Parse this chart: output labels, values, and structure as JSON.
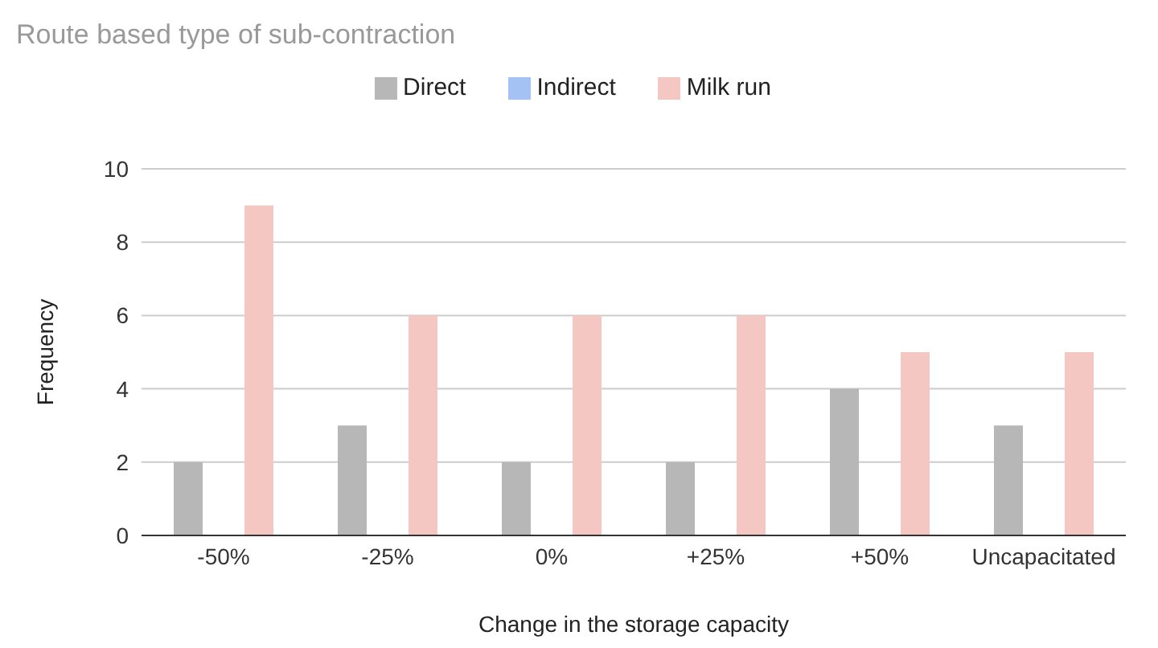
{
  "chart_data": {
    "type": "bar",
    "title": "Route based type of sub-contraction",
    "xlabel": "Change in the storage capacity",
    "ylabel": "Frequency",
    "categories": [
      "-50%",
      "-25%",
      "0%",
      "+25%",
      "+50%",
      "Uncapacitated"
    ],
    "series": [
      {
        "name": "Direct",
        "color": "#b7b7b7",
        "values": [
          2,
          3,
          2,
          2,
          4,
          3
        ]
      },
      {
        "name": "Indirect",
        "color": "#a4c2f4",
        "values": [
          0,
          0,
          0,
          0,
          0,
          0
        ]
      },
      {
        "name": "Milk run",
        "color": "#f4c7c3",
        "values": [
          9,
          6,
          6,
          6,
          5,
          5
        ]
      }
    ],
    "ylim": [
      0,
      10
    ],
    "yticks": [
      0,
      2,
      4,
      6,
      8,
      10
    ],
    "grid": "y",
    "legend": "top"
  }
}
